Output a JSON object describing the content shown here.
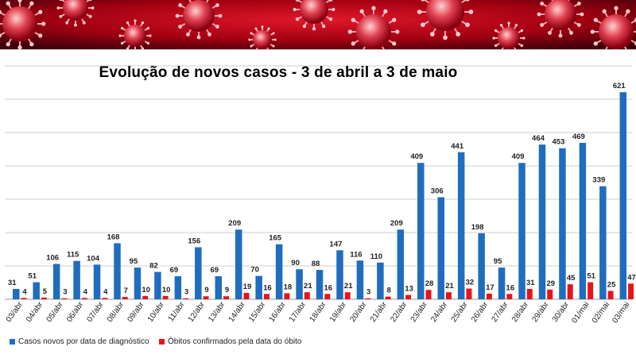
{
  "chart_data": {
    "type": "bar",
    "title": "Evolução de novos casos - 3 de abril a 3 de maio",
    "categories": [
      "03/abr",
      "04/abr",
      "05/abr",
      "06/abr",
      "07/abr",
      "08/abr",
      "09/abr",
      "10/abr",
      "11/abr",
      "12/abr",
      "13/abr",
      "14/abr",
      "15/abr",
      "16/abr",
      "17/abr",
      "18/abr",
      "19/abr",
      "20/abr",
      "21/abr",
      "22/abr",
      "23/abr",
      "24/abr",
      "25/abr",
      "26/abr",
      "27/abr",
      "28/abr",
      "29/abr",
      "30/abr",
      "01/mai",
      "02/mai",
      "03/mai"
    ],
    "series": [
      {
        "name": "Casos novos por data de diagnóstico",
        "color": "#1f6dbf",
        "values": [
          31,
          51,
          106,
          115,
          104,
          168,
          95,
          82,
          69,
          156,
          69,
          209,
          70,
          165,
          90,
          88,
          147,
          116,
          110,
          209,
          409,
          306,
          441,
          198,
          95,
          409,
          464,
          453,
          469,
          339,
          621
        ]
      },
      {
        "name": "Óbitos confirmados pela data do óbito",
        "color": "#e8141b",
        "values": [
          4,
          5,
          3,
          4,
          4,
          7,
          10,
          10,
          3,
          9,
          9,
          19,
          16,
          18,
          21,
          16,
          21,
          3,
          8,
          13,
          28,
          21,
          32,
          17,
          16,
          31,
          29,
          45,
          51,
          25,
          47
        ]
      }
    ],
    "ylim": [
      0,
      700
    ],
    "grid": true,
    "legend_position": "bottom-left"
  },
  "banner": {
    "image": "coronavirus-banner",
    "colors": [
      "#b00010",
      "#e01020",
      "#5a0008"
    ]
  }
}
